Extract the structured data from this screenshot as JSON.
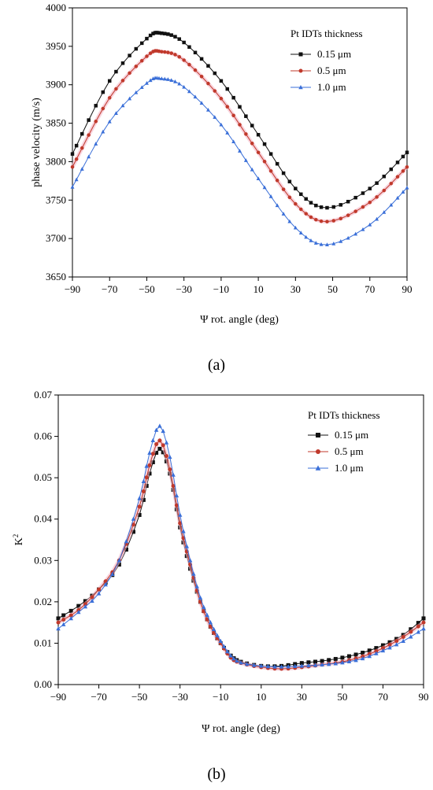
{
  "charts": [
    {
      "caption": "(a)",
      "legend_title": "Pt IDTs thickness"
    },
    {
      "caption": "(b)",
      "legend_title": "Pt IDTs thickness"
    }
  ],
  "chart_data": [
    {
      "type": "line",
      "xlabel": "Ψ rot. angle (deg)",
      "ylabel": "phase velocity (m/s)",
      "xlim": [
        -90,
        90
      ],
      "ylim": [
        3650,
        4000
      ],
      "xticks": [
        -90,
        -70,
        -50,
        -30,
        -10,
        10,
        30,
        50,
        70,
        90
      ],
      "yticks": [
        3650,
        3700,
        3750,
        3800,
        3850,
        3900,
        3950,
        4000
      ],
      "legend_position": "top-right",
      "series": [
        {
          "name": "0.15 μm",
          "color": "#111111",
          "marker": "square",
          "x": [
            -90,
            -70,
            -50,
            -42,
            -30,
            -10,
            10,
            30,
            47,
            70,
            90
          ],
          "y": [
            3810,
            3905,
            3960,
            3967,
            3955,
            3905,
            3835,
            3765,
            3740,
            3765,
            3812
          ]
        },
        {
          "name": "0.5 μm",
          "color": "#c0392b",
          "marker": "circle",
          "x": [
            -90,
            -70,
            -50,
            -42,
            -30,
            -10,
            10,
            30,
            47,
            70,
            90
          ],
          "y": [
            3793,
            3883,
            3937,
            3943,
            3932,
            3882,
            3812,
            3745,
            3722,
            3747,
            3793
          ]
        },
        {
          "name": "1.0 μm",
          "color": "#3a6fd8",
          "marker": "triangle",
          "x": [
            -90,
            -70,
            -50,
            -42,
            -30,
            -10,
            10,
            30,
            47,
            70,
            90
          ],
          "y": [
            3767,
            3852,
            3902,
            3908,
            3897,
            3848,
            3778,
            3714,
            3692,
            3718,
            3766
          ]
        }
      ]
    },
    {
      "type": "line",
      "xlabel": "Ψ rot. angle (deg)",
      "ylabel": "K",
      "ylabel_superscript": "2",
      "xlim": [
        -90,
        90
      ],
      "ylim": [
        0.0,
        0.07
      ],
      "xticks": [
        -90,
        -70,
        -50,
        -30,
        -10,
        10,
        30,
        50,
        70,
        90
      ],
      "yticks": [
        "0.00",
        "0.01",
        "0.02",
        "0.03",
        "0.04",
        "0.05",
        "0.06",
        "0.07"
      ],
      "legend_position": "top-right",
      "series": [
        {
          "name": "0.15 μm",
          "color": "#111111",
          "marker": "square",
          "x": [
            -90,
            -80,
            -70,
            -60,
            -50,
            -45,
            -40,
            -35,
            -30,
            -25,
            -20,
            -15,
            -10,
            -5,
            0,
            10,
            20,
            30,
            40,
            50,
            60,
            70,
            80,
            90
          ],
          "y": [
            0.016,
            0.019,
            0.023,
            0.029,
            0.041,
            0.051,
            0.057,
            0.051,
            0.038,
            0.028,
            0.02,
            0.014,
            0.01,
            0.007,
            0.0055,
            0.0045,
            0.0045,
            0.0052,
            0.0057,
            0.0065,
            0.0077,
            0.0095,
            0.012,
            0.016
          ]
        },
        {
          "name": "0.5 μm",
          "color": "#c0392b",
          "marker": "circle",
          "x": [
            -90,
            -80,
            -70,
            -60,
            -50,
            -45,
            -40,
            -35,
            -30,
            -25,
            -20,
            -15,
            -10,
            -5,
            0,
            10,
            20,
            30,
            40,
            50,
            60,
            70,
            80,
            90
          ],
          "y": [
            0.015,
            0.018,
            0.023,
            0.03,
            0.043,
            0.053,
            0.059,
            0.052,
            0.039,
            0.029,
            0.02,
            0.014,
            0.01,
            0.0065,
            0.0052,
            0.0042,
            0.0038,
            0.0042,
            0.0048,
            0.0055,
            0.0068,
            0.0088,
            0.0115,
            0.015
          ]
        },
        {
          "name": "1.0 μm",
          "color": "#3a6fd8",
          "marker": "triangle",
          "x": [
            -90,
            -80,
            -70,
            -60,
            -50,
            -45,
            -40,
            -35,
            -30,
            -25,
            -20,
            -15,
            -10,
            -5,
            0,
            10,
            20,
            30,
            40,
            50,
            60,
            70,
            80,
            90
          ],
          "y": [
            0.0135,
            0.0175,
            0.022,
            0.03,
            0.045,
            0.056,
            0.0625,
            0.055,
            0.041,
            0.03,
            0.021,
            0.015,
            0.0105,
            0.007,
            0.0053,
            0.0045,
            0.0043,
            0.0045,
            0.0048,
            0.0053,
            0.0063,
            0.0082,
            0.0105,
            0.0135
          ]
        }
      ]
    }
  ]
}
